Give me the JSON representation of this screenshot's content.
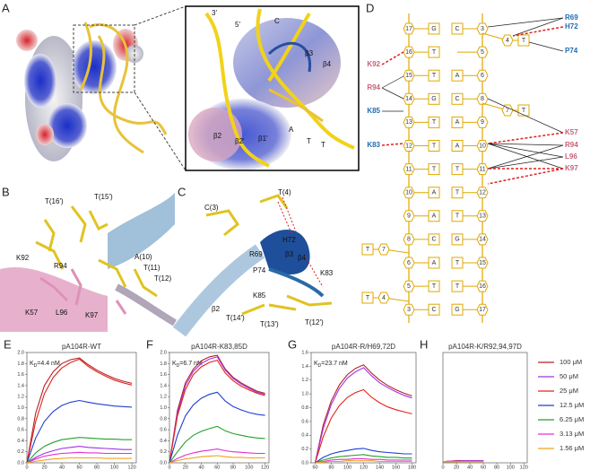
{
  "panels": {
    "A": {
      "letter": "A",
      "labels": [
        "3'",
        "5'",
        "C",
        "β3",
        "β4",
        "β2",
        "β2'",
        "β1'",
        "A",
        "T",
        "T"
      ]
    },
    "B": {
      "letter": "B",
      "labels": [
        "T(16')",
        "T(15')",
        "K92",
        "R94",
        "A(10)",
        "T(11)",
        "T(12)",
        "K57",
        "L96",
        "K97"
      ]
    },
    "C": {
      "letter": "C",
      "labels": [
        "T(4)",
        "C(3)",
        "H72",
        "R69",
        "β3",
        "β4",
        "P74",
        "K83",
        "K85",
        "β2",
        "T(14')",
        "T(13')",
        "T(12')"
      ]
    },
    "D": {
      "letter": "D",
      "rows": [
        {
          "left_number": 17,
          "left_base": "G",
          "right_base": "C",
          "right_number": 3
        },
        {
          "left_number": 16,
          "left_base": "T",
          "right_number": 5
        },
        {
          "left_number": 15,
          "left_base": "T",
          "right_base": "A",
          "right_number": 6
        },
        {
          "left_number": 14,
          "left_base": "G",
          "right_base": "C",
          "right_number": 8
        },
        {
          "left_number": 13,
          "left_base": "T",
          "right_base": "A",
          "right_number": 9
        },
        {
          "left_number": 12,
          "left_base": "T",
          "right_base": "A",
          "right_number": 10
        },
        {
          "left_number": 11,
          "left_base": "T",
          "right_base": "T",
          "right_number": 11
        },
        {
          "left_number": 10,
          "left_base": "A",
          "right_base": "T",
          "right_number": 12
        },
        {
          "left_number": 9,
          "left_base": "A",
          "right_base": "T",
          "right_number": 13
        },
        {
          "left_number": 8,
          "left_base": "C",
          "right_base": "G",
          "right_number": 14
        },
        {
          "left_number": 6,
          "left_base": "A",
          "right_base": "T",
          "right_number": 15
        },
        {
          "left_number": 5,
          "left_base": "T",
          "right_base": "T",
          "right_number": 16
        },
        {
          "left_number": 3,
          "left_base": "C",
          "right_base": "G",
          "right_number": 17
        }
      ],
      "flipped": [
        {
          "number": 4,
          "base": "T"
        },
        {
          "number": 7,
          "base": "T"
        },
        {
          "number": 7,
          "base": "T"
        },
        {
          "number": 4,
          "base": "T"
        }
      ],
      "residues": [
        "R69",
        "H72",
        "P74",
        "K92",
        "R94",
        "K85",
        "K83",
        "K57",
        "R94",
        "L96",
        "K97"
      ]
    }
  },
  "chart_data": [
    {
      "type": "line",
      "panel_label": "E",
      "title": "pA104R-WT",
      "annotation": [
        "K",
        "D",
        "=4.4 nM"
      ],
      "x": [
        0,
        10,
        20,
        30,
        40,
        50,
        60,
        70,
        80,
        90,
        100,
        110,
        120
      ],
      "xlim": [
        0,
        125
      ],
      "xticks": [
        0,
        20,
        40,
        60,
        80,
        100,
        120
      ],
      "ylim": [
        0,
        2.0
      ],
      "yticks": [
        {
          "value": 0,
          "label": "0.0"
        },
        0.2,
        0.4,
        0.6,
        0.8,
        {
          "value": 1,
          "label": "1.0"
        },
        1.2,
        1.4,
        1.6,
        1.8,
        {
          "value": 2,
          "label": "2.0"
        }
      ],
      "series": [
        {
          "color": "#b5202a",
          "values": [
            0,
            0.9,
            1.4,
            1.65,
            1.8,
            1.87,
            1.9,
            1.78,
            1.68,
            1.6,
            1.53,
            1.48,
            1.44
          ]
        },
        {
          "color": "#a033e0",
          "values": [
            0,
            0.1,
            0.17,
            0.22,
            0.26,
            0.28,
            0.3,
            0.28,
            0.27,
            0.26,
            0.25,
            0.24,
            0.24
          ]
        },
        {
          "color": "#e0241b",
          "values": [
            0,
            0.75,
            1.25,
            1.55,
            1.72,
            1.82,
            1.88,
            1.75,
            1.65,
            1.57,
            1.5,
            1.45,
            1.41
          ]
        },
        {
          "color": "#1f3fcf",
          "values": [
            0,
            0.45,
            0.75,
            0.93,
            1.04,
            1.1,
            1.13,
            1.1,
            1.07,
            1.05,
            1.03,
            1.02,
            1.01
          ]
        },
        {
          "color": "#22a22a",
          "values": [
            0,
            0.18,
            0.3,
            0.37,
            0.42,
            0.44,
            0.46,
            0.45,
            0.44,
            0.43,
            0.43,
            0.42,
            0.42
          ]
        },
        {
          "color": "#e030d0",
          "values": [
            0,
            0.07,
            0.12,
            0.15,
            0.17,
            0.18,
            0.19,
            0.18,
            0.18,
            0.17,
            0.17,
            0.17,
            0.17
          ]
        },
        {
          "color": "#f0a020",
          "values": [
            0,
            0.03,
            0.05,
            0.07,
            0.08,
            0.09,
            0.09,
            0.09,
            0.09,
            0.08,
            0.08,
            0.08,
            0.08
          ]
        }
      ]
    },
    {
      "type": "line",
      "panel_label": "F",
      "title": "pA104R-K83,85D",
      "annotation": [
        "K",
        "D",
        "=6.7 nM"
      ],
      "x": [
        0,
        10,
        20,
        30,
        40,
        50,
        60,
        70,
        80,
        90,
        100,
        110,
        120
      ],
      "xlim": [
        0,
        125
      ],
      "xticks": [
        0,
        20,
        40,
        60,
        80,
        100,
        120
      ],
      "ylim": [
        0,
        2.0
      ],
      "yticks": [
        {
          "value": 0,
          "label": "0.0"
        },
        0.2,
        0.4,
        0.6,
        0.8,
        {
          "value": 1,
          "label": "1.0"
        },
        1.2,
        1.4,
        1.6,
        1.8,
        {
          "value": 2,
          "label": "2.0"
        }
      ],
      "series": [
        {
          "color": "#b5202a",
          "values": [
            0,
            0.95,
            1.45,
            1.7,
            1.85,
            1.92,
            1.95,
            1.7,
            1.55,
            1.45,
            1.37,
            1.3,
            1.26
          ]
        },
        {
          "color": "#a033e0",
          "values": [
            0,
            0.9,
            1.4,
            1.66,
            1.8,
            1.88,
            1.92,
            1.68,
            1.53,
            1.43,
            1.35,
            1.28,
            1.24
          ]
        },
        {
          "color": "#e0241b",
          "values": [
            0,
            0.85,
            1.33,
            1.6,
            1.74,
            1.82,
            1.86,
            1.63,
            1.49,
            1.39,
            1.32,
            1.26,
            1.22
          ]
        },
        {
          "color": "#1f3fcf",
          "values": [
            0,
            0.5,
            0.85,
            1.05,
            1.17,
            1.24,
            1.28,
            1.12,
            1.02,
            0.96,
            0.91,
            0.88,
            0.86
          ]
        },
        {
          "color": "#22a22a",
          "values": [
            0,
            0.2,
            0.38,
            0.5,
            0.57,
            0.62,
            0.66,
            0.58,
            0.53,
            0.5,
            0.47,
            0.45,
            0.44
          ]
        },
        {
          "color": "#e030d0",
          "values": [
            0,
            0.08,
            0.14,
            0.18,
            0.21,
            0.23,
            0.25,
            0.22,
            0.2,
            0.19,
            0.18,
            0.17,
            0.17
          ]
        },
        {
          "color": "#f0a020",
          "values": [
            0,
            0.04,
            0.07,
            0.09,
            0.11,
            0.12,
            0.13,
            0.11,
            0.1,
            0.1,
            0.09,
            0.09,
            0.09
          ]
        }
      ]
    },
    {
      "type": "line",
      "panel_label": "G",
      "title": "pA104R-R/H69,72D",
      "annotation": [
        "K",
        "D",
        "=23.7 nM"
      ],
      "x": [
        60,
        70,
        80,
        90,
        100,
        110,
        120,
        130,
        140,
        150,
        160,
        170,
        180
      ],
      "xlim": [
        55,
        185
      ],
      "xticks": [
        60,
        80,
        100,
        120,
        140,
        160,
        180
      ],
      "ylim": [
        0,
        1.6
      ],
      "yticks": [
        {
          "value": 0,
          "label": "0.0"
        },
        0.2,
        0.4,
        0.6,
        0.8,
        {
          "value": 1,
          "label": "1.0"
        },
        1.2,
        1.4,
        1.6
      ],
      "series": [
        {
          "color": "#b5202a",
          "values": [
            0,
            0.55,
            0.9,
            1.13,
            1.28,
            1.37,
            1.42,
            1.3,
            1.2,
            1.12,
            1.06,
            1.01,
            0.97
          ]
        },
        {
          "color": "#a033e0",
          "values": [
            0,
            0.5,
            0.85,
            1.08,
            1.23,
            1.32,
            1.38,
            1.26,
            1.16,
            1.09,
            1.03,
            0.98,
            0.94
          ]
        },
        {
          "color": "#e0241b",
          "values": [
            0,
            0.38,
            0.65,
            0.83,
            0.95,
            1.02,
            1.06,
            0.95,
            0.87,
            0.81,
            0.77,
            0.74,
            0.71
          ]
        },
        {
          "color": "#1f3fcf",
          "values": [
            0,
            0.08,
            0.13,
            0.16,
            0.18,
            0.2,
            0.21,
            0.18,
            0.16,
            0.15,
            0.14,
            0.13,
            0.13
          ]
        },
        {
          "color": "#22a22a",
          "values": [
            0,
            0.04,
            0.07,
            0.09,
            0.1,
            0.11,
            0.12,
            0.1,
            0.09,
            0.08,
            0.08,
            0.07,
            0.07
          ]
        },
        {
          "color": "#e030d0",
          "values": [
            0,
            0.02,
            0.04,
            0.05,
            0.05,
            0.06,
            0.06,
            0.05,
            0.05,
            0.04,
            0.04,
            0.04,
            0.04
          ]
        },
        {
          "color": "#f0a020",
          "values": [
            0,
            0.01,
            0.02,
            0.02,
            0.03,
            0.03,
            0.03,
            0.03,
            0.02,
            0.02,
            0.02,
            0.02,
            0.02
          ]
        }
      ]
    },
    {
      "type": "line",
      "panel_label": "H",
      "title": "pA104R-K/R92,94,97D",
      "legend": "right",
      "x": [
        0,
        10,
        20,
        30,
        40,
        50,
        60
      ],
      "xlim": [
        0,
        125
      ],
      "xticks": [
        0,
        20,
        40,
        60,
        80,
        100,
        120
      ],
      "ylim": [
        0,
        2.0
      ],
      "series": [
        {
          "name": "100 μM",
          "color": "#b5202a",
          "values": [
            0.02,
            0.03,
            0.04,
            0.04,
            0.04,
            0.04,
            0.04
          ]
        },
        {
          "name": "50 μM",
          "color": "#a033e0",
          "values": [
            0.02,
            0.03,
            0.03,
            0.04,
            0.04,
            0.04,
            0.04
          ]
        },
        {
          "name": "25 μM",
          "color": "#e0241b",
          "values": [
            0.02,
            0.03,
            0.03,
            0.03,
            0.03,
            0.03,
            0.03
          ]
        },
        {
          "name": "12.5 μM",
          "color": "#1f3fcf",
          "values": [
            0.02,
            0.02,
            0.03,
            0.03,
            0.03,
            0.03,
            0.03
          ]
        },
        {
          "name": "6.25 μM",
          "color": "#22a22a",
          "values": [
            0.02,
            0.02,
            0.02,
            0.03,
            0.03,
            0.03,
            0.03
          ]
        },
        {
          "name": "3.13 μM",
          "color": "#e030d0",
          "values": [
            0.02,
            0.03,
            0.03,
            0.03,
            0.03,
            0.03,
            0.03
          ]
        },
        {
          "name": "1.56 μM",
          "color": "#f0a020",
          "values": [
            0.02,
            0.02,
            0.02,
            0.02,
            0.02,
            0.02,
            0.02
          ]
        }
      ]
    }
  ]
}
